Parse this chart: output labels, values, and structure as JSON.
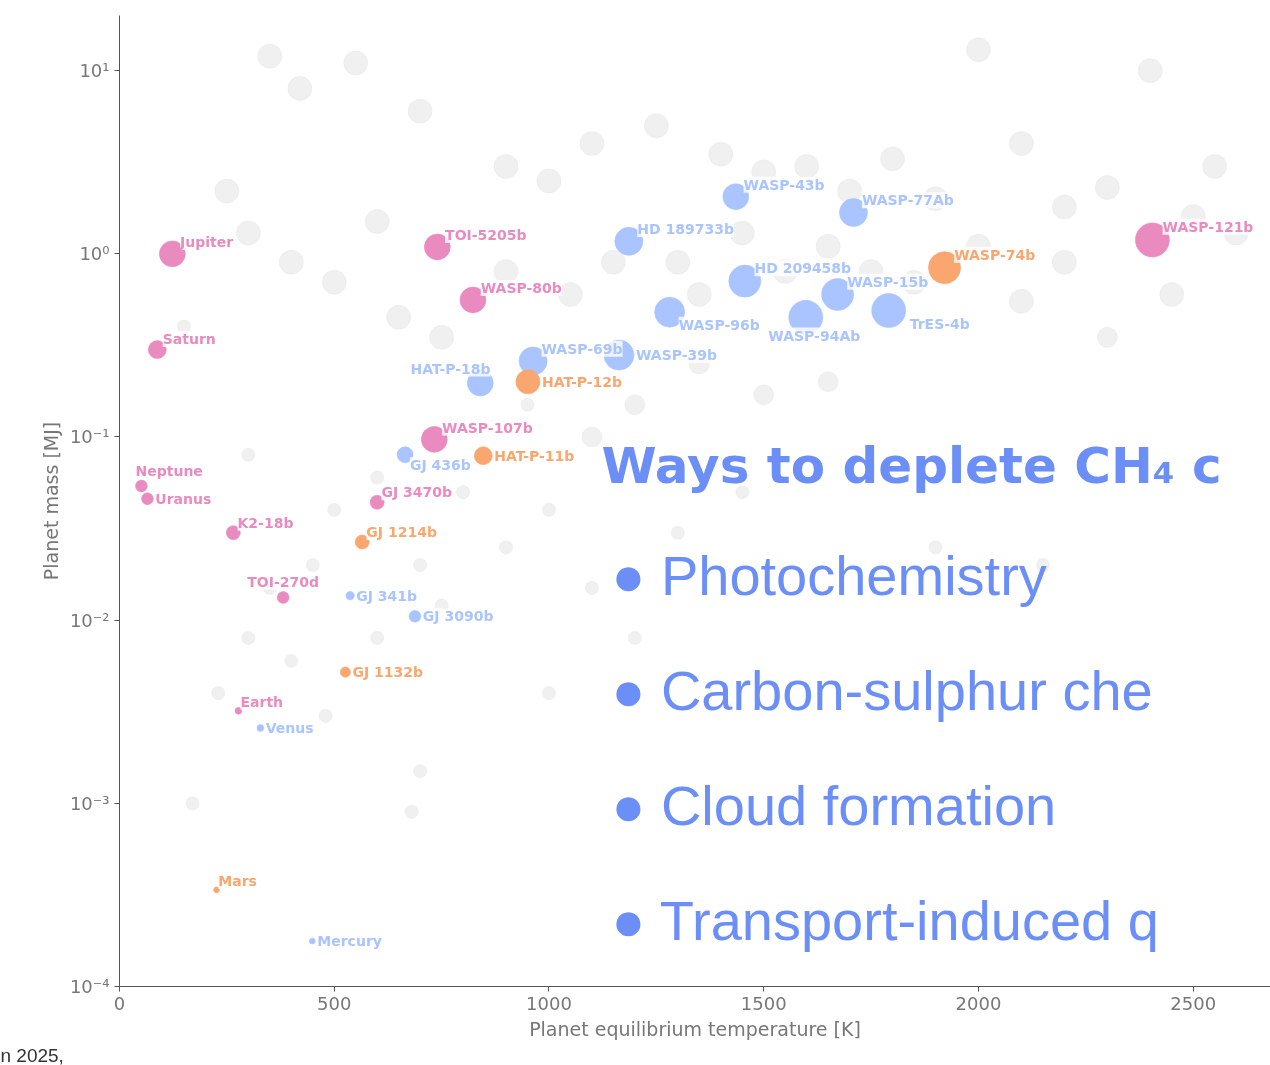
{
  "chart_data": {
    "type": "bubble",
    "xlabel": "Planet equilibrium temperature [K]",
    "ylabel": "Planet mass [MJ]",
    "xlim": [
      0,
      2680
    ],
    "ylim": [
      0.0001,
      20
    ],
    "log": "y",
    "grid": false,
    "xticks": [
      0,
      500,
      1000,
      1500,
      2000,
      2500
    ],
    "yticks": [
      {
        "value": 0.0001,
        "label": "10⁻⁴"
      },
      {
        "value": 0.001,
        "label": "10⁻³"
      },
      {
        "value": 0.01,
        "label": "10⁻²"
      },
      {
        "value": 0.1,
        "label": "10⁻¹"
      },
      {
        "value": 1,
        "label": "10⁰"
      },
      {
        "value": 10,
        "label": "10¹"
      }
    ],
    "series": [
      {
        "color": "#d4d4d4",
        "x": [
          350,
          420,
          550,
          700,
          900,
          1000,
          1100,
          1250,
          1400,
          1500,
          1600,
          1700,
          1800,
          1900,
          2000,
          2100,
          2200,
          2300,
          2400,
          2500,
          2550,
          250,
          300,
          400,
          500,
          600,
          650,
          750,
          900,
          1050,
          1150,
          1300,
          1350,
          1450,
          1550,
          1650,
          1750,
          1850,
          2000,
          2100,
          2200,
          2450,
          2600,
          2300,
          1650,
          1500,
          1350,
          1200,
          1100,
          950,
          800,
          700,
          600,
          500,
          450,
          350,
          300,
          400,
          600,
          750,
          900,
          1000,
          1100,
          1200,
          1300,
          1450,
          1900,
          2150,
          230,
          480,
          700,
          170,
          680,
          150,
          300,
          1000
        ],
        "values": [
          12,
          8,
          11,
          6,
          3,
          2.5,
          4,
          5,
          3.5,
          2.8,
          3,
          2.2,
          3.3,
          2,
          13,
          4,
          1.8,
          2.3,
          10,
          1.6,
          3,
          2.2,
          1.3,
          0.9,
          0.7,
          1.5,
          0.45,
          0.35,
          0.8,
          0.6,
          0.9,
          0.9,
          0.6,
          1.3,
          0.8,
          1.1,
          0.8,
          0.7,
          1.1,
          0.55,
          0.9,
          0.6,
          1.3,
          0.35,
          0.2,
          0.17,
          0.25,
          0.15,
          0.1,
          0.15,
          0.05,
          0.02,
          0.06,
          0.04,
          0.02,
          0.015,
          0.008,
          0.006,
          0.008,
          0.012,
          0.025,
          0.04,
          0.015,
          0.008,
          0.03,
          0.05,
          0.025,
          0.02,
          0.004,
          0.003,
          0.0015,
          0.001,
          0.0009,
          0.4,
          0.08,
          0.004
        ],
        "sizes": [
          0.5,
          0.5,
          0.5,
          0.5,
          0.5,
          0.5,
          0.5,
          0.5,
          0.5,
          0.5,
          0.5,
          0.5,
          0.5,
          0.5,
          0.5,
          0.5,
          0.5,
          0.5,
          0.5,
          0.5,
          0.5,
          0.5,
          0.5,
          0.5,
          0.5,
          0.5,
          0.5,
          0.5,
          0.5,
          0.5,
          0.5,
          0.5,
          0.5,
          0.5,
          0.5,
          0.5,
          0.5,
          0.5,
          0.5,
          0.5,
          0.5,
          0.5,
          0.5,
          0.35,
          0.35,
          0.35,
          0.35,
          0.35,
          0.35,
          0.15,
          0.15,
          0.15,
          0.15,
          0.15,
          0.15,
          0.15,
          0.15,
          0.15,
          0.15,
          0.15,
          0.15,
          0.15,
          0.15,
          0.15,
          0.15,
          0.15,
          0.15,
          0.15,
          0.15,
          0.15,
          0.15,
          0.15,
          0.15,
          0.15,
          0.15,
          0.15
        ]
      },
      {
        "color": "#e98bbf",
        "x": [
          123,
          88,
          51,
          65,
          265,
          381,
          600,
          733,
          740,
          823,
          2405,
          277
        ],
        "values": [
          1.0,
          0.3,
          0.054,
          0.046,
          0.03,
          0.0133,
          0.044,
          0.097,
          1.09,
          0.56,
          1.19,
          0.0032
        ],
        "sizes": [
          0.58,
          0.28,
          0.12,
          0.12,
          0.17,
          0.12,
          0.17,
          0.58,
          0.58,
          0.58,
          1,
          0.04
        ]
      },
      {
        "color": "#a9c4ff",
        "x": [
          665,
          537,
          688,
          328,
          449,
          840,
          963,
          1163,
          1281,
          1186,
          1435,
          1709,
          1456,
          1672,
          1598,
          1791
        ],
        "values": [
          0.08,
          0.0136,
          0.0105,
          0.00258,
          0.000177,
          0.197,
          0.26,
          0.28,
          0.48,
          1.17,
          2.05,
          1.68,
          0.71,
          0.6,
          0.45,
          0.49
        ],
        "sizes": [
          0.22,
          0.06,
          0.12,
          0.04,
          0.03,
          0.58,
          0.68,
          0.78,
          0.78,
          0.68,
          0.58,
          0.68,
          0.89,
          0.89,
          1,
          1
        ]
      },
      {
        "color": "#f9a66f",
        "x": [
          951,
          847,
          565,
          526,
          226,
          1921
        ],
        "values": [
          0.2,
          0.079,
          0.0267,
          0.0052,
          0.000337,
          0.84
        ],
        "sizes": [
          0.5,
          0.28,
          0.17,
          0.09,
          0.03,
          0.89
        ]
      }
    ],
    "annotations": [
      {
        "text": "Jupiter",
        "x": 123,
        "y": 1.0
      },
      {
        "text": "Saturn",
        "x": 88,
        "y": 0.3
      },
      {
        "text": "Neptune",
        "x": 51,
        "y": 0.054
      },
      {
        "text": "Uranus",
        "x": 65,
        "y": 0.046
      },
      {
        "text": "K2-18b",
        "x": 265,
        "y": 0.03
      },
      {
        "text": "TOI-270d",
        "x": 381,
        "y": 0.0133
      },
      {
        "text": "GJ 3470b",
        "x": 600,
        "y": 0.044
      },
      {
        "text": "WASP-107b",
        "x": 733,
        "y": 0.097
      },
      {
        "text": "TOI-5205b",
        "x": 740,
        "y": 1.09
      },
      {
        "text": "WASP-80b",
        "x": 823,
        "y": 0.56
      },
      {
        "text": "WASP-121b",
        "x": 2405,
        "y": 1.19
      },
      {
        "text": "Earth",
        "x": 277,
        "y": 0.0032
      },
      {
        "text": "GJ 436b",
        "x": 665,
        "y": 0.08
      },
      {
        "text": "GJ 341b",
        "x": 537,
        "y": 0.0136
      },
      {
        "text": "GJ 3090b",
        "x": 688,
        "y": 0.0105
      },
      {
        "text": "Venus",
        "x": 328,
        "y": 0.00258
      },
      {
        "text": "Mercury",
        "x": 449,
        "y": 0.000177
      },
      {
        "text": "HAT-P-18b",
        "x": 840,
        "y": 0.197
      },
      {
        "text": "WASP-69b",
        "x": 963,
        "y": 0.26
      },
      {
        "text": "WASP-39b",
        "x": 1163,
        "y": 0.28
      },
      {
        "text": "WASP-96b",
        "x": 1281,
        "y": 0.48
      },
      {
        "text": "HD 189733b",
        "x": 1186,
        "y": 1.17
      },
      {
        "text": "WASP-43b",
        "x": 1435,
        "y": 2.05
      },
      {
        "text": "WASP-77Ab",
        "x": 1709,
        "y": 1.68
      },
      {
        "text": "HD 209458b",
        "x": 1456,
        "y": 0.71
      },
      {
        "text": "WASP-15b",
        "x": 1672,
        "y": 0.6
      },
      {
        "text": "WASP-94Ab",
        "x": 1598,
        "y": 0.45
      },
      {
        "text": "TrES-4b",
        "x": 1791,
        "y": 0.49
      },
      {
        "text": "HAT-P-12b",
        "x": 951,
        "y": 0.2
      },
      {
        "text": "HAT-P-11b",
        "x": 847,
        "y": 0.079
      },
      {
        "text": "GJ 1214b",
        "x": 565,
        "y": 0.0267
      },
      {
        "text": "GJ 1132b",
        "x": 526,
        "y": 0.0052
      },
      {
        "text": "Mars",
        "x": 226,
        "y": 0.000337
      },
      {
        "text": "WASP-74b",
        "x": 1921,
        "y": 0.84
      },
      "Ways to deplete CH₄ c",
      "● Photochemistry",
      "● Carbon-sulphur che",
      "● Cloud formation",
      "● Transport-induced q",
      "n 2025,"
    ]
  }
}
